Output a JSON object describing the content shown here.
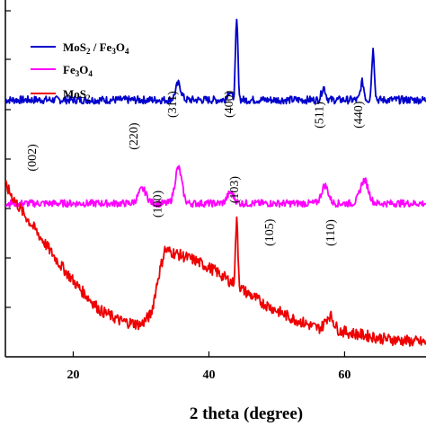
{
  "chart_data": {
    "type": "line",
    "title": "",
    "xlabel": "2 theta (degree)",
    "ylabel": "",
    "xlim": [
      10,
      72
    ],
    "ylim": [
      0,
      100
    ],
    "x_ticks": [
      20,
      40,
      60
    ],
    "legend": {
      "placement": "top-left",
      "entries": [
        {
          "name": "MoS2 / Fe3O4",
          "color": "#0000cc"
        },
        {
          "name": "Fe3O4",
          "color": "#ff00ff"
        },
        {
          "name": "MoS2",
          "color": "#ee0000"
        }
      ]
    },
    "series": [
      {
        "name": "MoS2 / Fe3O4",
        "color": "#0000cc",
        "baseline": 72,
        "noise": 1.1,
        "peaks": [
          [
            35.5,
            4.5,
            0.4
          ],
          [
            43.0,
            2.5,
            0.3
          ],
          [
            44.1,
            22,
            0.18
          ],
          [
            56.9,
            3.5,
            0.3
          ],
          [
            62.6,
            5,
            0.25
          ],
          [
            64.2,
            14,
            0.2
          ]
        ]
      },
      {
        "name": "Fe3O4",
        "color": "#ff00ff",
        "baseline": 43,
        "noise": 1.0,
        "peaks": [
          [
            30.2,
            4,
            0.6
          ],
          [
            35.5,
            10,
            0.5
          ],
          [
            43.2,
            3,
            0.5
          ],
          [
            57.1,
            5,
            0.5
          ],
          [
            62.9,
            6.5,
            0.6
          ]
        ]
      },
      {
        "name": "MoS2",
        "color": "#ee0000",
        "noise": 1.6,
        "background": [
          [
            10,
            48
          ],
          [
            12,
            42
          ],
          [
            15,
            34
          ],
          [
            18,
            26
          ],
          [
            21,
            19
          ],
          [
            24,
            13
          ],
          [
            27,
            10
          ],
          [
            30,
            9
          ],
          [
            31.5,
            12
          ],
          [
            32.5,
            22
          ],
          [
            33.5,
            30
          ],
          [
            35,
            29
          ],
          [
            38,
            27
          ],
          [
            41,
            24
          ],
          [
            44,
            20
          ],
          [
            48,
            15
          ],
          [
            52,
            11
          ],
          [
            56,
            8
          ],
          [
            60,
            7
          ],
          [
            66,
            5
          ],
          [
            72,
            4
          ]
        ],
        "peaks": [
          [
            44.1,
            18,
            0.18
          ],
          [
            57.8,
            4,
            0.6
          ]
        ]
      }
    ],
    "annotations": [
      {
        "text": "(002)",
        "x": 14.5,
        "y": 52
      },
      {
        "text": "(100)",
        "x": 33.0,
        "y": 39
      },
      {
        "text": "(103)",
        "x": 44.3,
        "y": 43
      },
      {
        "text": "(105)",
        "x": 49.5,
        "y": 31
      },
      {
        "text": "(110)",
        "x": 58.5,
        "y": 31
      },
      {
        "text": "(220)",
        "x": 29.5,
        "y": 58
      },
      {
        "text": "(311)",
        "x": 35.2,
        "y": 67
      },
      {
        "text": "(400)",
        "x": 43.5,
        "y": 67
      },
      {
        "text": "(511)",
        "x": 56.8,
        "y": 64
      },
      {
        "text": "(440)",
        "x": 62.6,
        "y": 64
      }
    ]
  },
  "legend_labels": {
    "mos2_fe3o4": {
      "base1": "MoS",
      "sub1": "2",
      "mid": " / Fe",
      "sub2": "3",
      "base2": "O",
      "sub3": "4"
    },
    "fe3o4": {
      "base": "Fe",
      "sub1": "3",
      "mid": "O",
      "sub2": "4"
    },
    "mos2": {
      "base": "MoS",
      "sub1": "2"
    }
  }
}
